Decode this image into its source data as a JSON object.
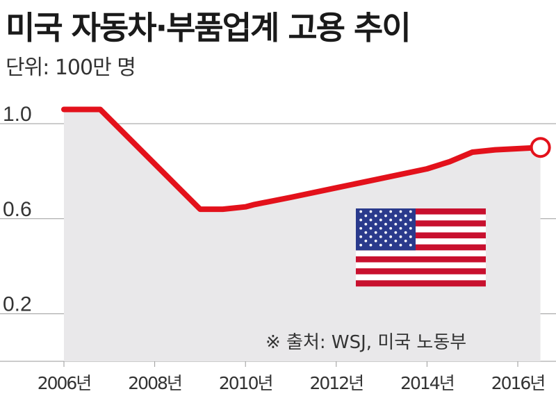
{
  "title": "미국 자동차·부품업계 고용 추이",
  "subtitle": "단위: 100만 명",
  "source": "※ 출처:  WSJ, 미국 노동부",
  "colors": {
    "line": "#e3111b",
    "area": "#e9e8ea",
    "grid": "#9a9a9a",
    "flag_red": "#c8102e",
    "flag_blue": "#2a3a8c"
  },
  "flag_icon": "us-flag",
  "chart_data": {
    "type": "area",
    "title": "미국 자동차·부품업계 고용 추이",
    "ylabel": "단위: 100만 명",
    "xlabel": "",
    "ylim": [
      0.0,
      1.14
    ],
    "yticks": [
      {
        "value": 1.0,
        "label": "1.0"
      },
      {
        "value": 0.6,
        "label": "0.6"
      },
      {
        "value": 0.2,
        "label": "0.2"
      }
    ],
    "xlim": [
      2006,
      2016.6
    ],
    "xticks": [
      {
        "value": 2006,
        "label": "2006년"
      },
      {
        "value": 2008,
        "label": "2008년"
      },
      {
        "value": 2010,
        "label": "2010년"
      },
      {
        "value": 2012,
        "label": "2012년"
      },
      {
        "value": 2014,
        "label": "2014년"
      },
      {
        "value": 2016,
        "label": "2016년"
      }
    ],
    "series": [
      {
        "name": "",
        "x": [
          2006.0,
          2006.8,
          2009.0,
          2009.5,
          2010.0,
          2010.2,
          2011.0,
          2012.0,
          2013.0,
          2014.0,
          2014.5,
          2015.0,
          2015.5,
          2016.5
        ],
        "y": [
          1.06,
          1.06,
          0.64,
          0.64,
          0.65,
          0.66,
          0.69,
          0.73,
          0.77,
          0.81,
          0.84,
          0.88,
          0.89,
          0.9
        ]
      }
    ],
    "end_marker": true,
    "grid": true
  }
}
